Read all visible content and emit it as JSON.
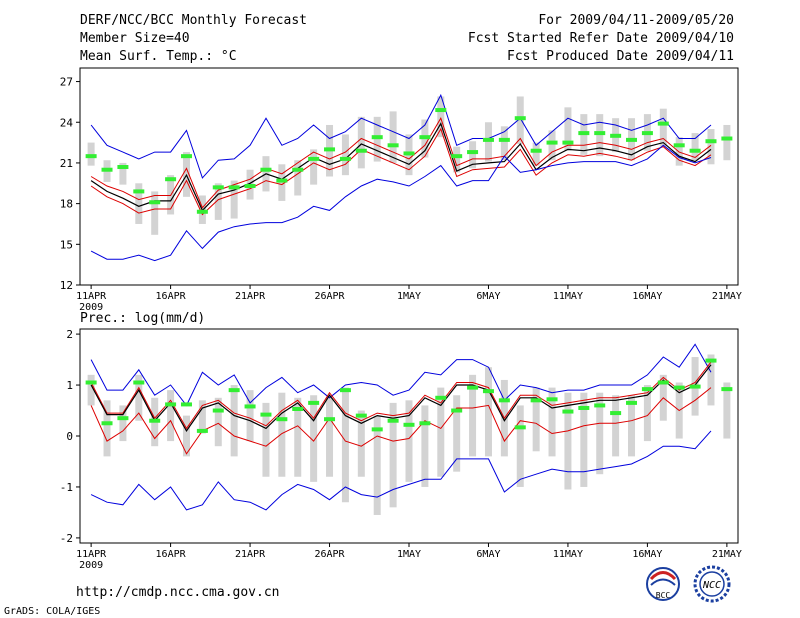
{
  "header": {
    "left": [
      "DERF/NCC/BCC Monthly Forecast",
      "Member Size=40",
      "Mean Surf. Temp.: °C"
    ],
    "right": [
      "For 2009/04/11-2009/05/20",
      "Fcst Started Refer Date 2009/04/10",
      "Fcst Produced Date 2009/04/11"
    ]
  },
  "prec_label": "Prec.: log(mm/d)",
  "footer": {
    "url": "http://cmdp.ncc.cma.gov.cn",
    "credit": "GrADS: COLA/IGES"
  },
  "logos": {
    "bcc": "BCC",
    "ncc": "NCC"
  },
  "colors": {
    "box": "#d3d3d3",
    "mean": "#33ee33",
    "ens": "#000000",
    "inner": "#dd0000",
    "outer": "#0000dd"
  },
  "x_ticks": [
    {
      "day": 0,
      "label": "11APR",
      "sub": "2009"
    },
    {
      "day": 5,
      "label": "16APR",
      "sub": ""
    },
    {
      "day": 10,
      "label": "21APR",
      "sub": ""
    },
    {
      "day": 15,
      "label": "26APR",
      "sub": ""
    },
    {
      "day": 20,
      "label": "1MAY",
      "sub": ""
    },
    {
      "day": 25,
      "label": "6MAY",
      "sub": ""
    },
    {
      "day": 30,
      "label": "11MAY",
      "sub": ""
    },
    {
      "day": 35,
      "label": "16MAY",
      "sub": ""
    },
    {
      "day": 40,
      "label": "21MAY",
      "sub": ""
    }
  ],
  "chart_data": [
    {
      "type": "line",
      "title": "Mean Surf. Temp.: °C",
      "x_unit": "day index (0 = 11APR 2009)",
      "x": [
        0,
        1,
        2,
        3,
        4,
        5,
        6,
        7,
        8,
        9,
        10,
        11,
        12,
        13,
        14,
        15,
        16,
        17,
        18,
        19,
        20,
        21,
        22,
        23,
        24,
        25,
        26,
        27,
        28,
        29,
        30,
        31,
        32,
        33,
        34,
        35,
        36,
        37,
        38,
        39
      ],
      "ylim": [
        12,
        28
      ],
      "yticks": [
        12,
        15,
        18,
        21,
        24,
        27
      ],
      "series": [
        {
          "name": "upper",
          "values": [
            23.8,
            22.3,
            21.8,
            21.3,
            21.8,
            21.8,
            23.4,
            19.9,
            21.2,
            21.3,
            22.3,
            24.3,
            22.3,
            22.8,
            23.8,
            22.8,
            23.3,
            24.3,
            23.8,
            23.3,
            22.8,
            23.8,
            26.0,
            22.3,
            22.8,
            22.8,
            23.3,
            24.3,
            22.3,
            23.3,
            24.3,
            23.8,
            24.0,
            23.8,
            23.4,
            23.8,
            24.3,
            22.8,
            22.8,
            23.8
          ]
        },
        {
          "name": "red_upper",
          "values": [
            20.0,
            19.3,
            18.9,
            18.3,
            18.6,
            18.6,
            20.6,
            17.7,
            19.0,
            19.4,
            19.8,
            20.6,
            20.2,
            21.0,
            21.8,
            21.3,
            21.8,
            22.8,
            22.3,
            21.8,
            21.3,
            22.3,
            24.3,
            20.8,
            21.3,
            21.3,
            21.5,
            22.8,
            20.8,
            21.8,
            22.3,
            22.3,
            22.5,
            22.3,
            22.0,
            22.5,
            22.8,
            21.8,
            21.4,
            22.3
          ]
        },
        {
          "name": "mean",
          "values": [
            19.7,
            18.9,
            18.4,
            17.8,
            18.2,
            18.2,
            20.1,
            17.5,
            18.7,
            19.0,
            19.5,
            20.2,
            19.8,
            20.6,
            21.4,
            20.9,
            21.3,
            22.4,
            21.9,
            21.4,
            20.9,
            21.9,
            23.9,
            20.4,
            20.9,
            21.0,
            21.1,
            22.4,
            20.5,
            21.4,
            22.0,
            21.9,
            22.1,
            21.9,
            21.6,
            22.2,
            22.5,
            21.5,
            21.1,
            22.0
          ]
        },
        {
          "name": "red_lower",
          "values": [
            19.3,
            18.5,
            18.0,
            17.3,
            17.6,
            17.6,
            19.7,
            17.2,
            18.3,
            18.7,
            19.1,
            19.7,
            19.4,
            20.2,
            21.0,
            20.5,
            20.9,
            22.0,
            21.5,
            21.0,
            20.5,
            21.5,
            23.5,
            20.0,
            20.5,
            20.6,
            20.7,
            22.0,
            20.1,
            21.0,
            21.6,
            21.5,
            21.7,
            21.5,
            21.2,
            21.8,
            22.2,
            21.2,
            20.8,
            21.6
          ]
        },
        {
          "name": "lower",
          "values": [
            14.5,
            13.9,
            13.9,
            14.2,
            13.8,
            14.2,
            16.0,
            14.7,
            15.9,
            16.3,
            16.5,
            16.6,
            16.6,
            17.0,
            17.8,
            17.5,
            18.5,
            19.3,
            19.8,
            19.6,
            19.3,
            20.0,
            20.8,
            19.3,
            19.7,
            19.7,
            21.5,
            20.3,
            20.5,
            20.8,
            21.0,
            21.1,
            21.1,
            21.1,
            20.8,
            21.3,
            22.3,
            21.4,
            21.0,
            21.4
          ]
        }
      ],
      "boxes": [
        {
          "x": 0,
          "lo": 20.8,
          "hi": 22.5,
          "mean": 21.5
        },
        {
          "x": 1,
          "lo": 19.6,
          "hi": 21.2,
          "mean": 20.5
        },
        {
          "x": 2,
          "lo": 19.4,
          "hi": 21.0,
          "mean": 20.7
        },
        {
          "x": 3,
          "lo": 16.5,
          "hi": 19.5,
          "mean": 18.9
        },
        {
          "x": 4,
          "lo": 15.7,
          "hi": 18.9,
          "mean": 18.1
        },
        {
          "x": 5,
          "lo": 17.2,
          "hi": 20.1,
          "mean": 19.8
        },
        {
          "x": 6,
          "lo": 18.5,
          "hi": 21.8,
          "mean": 21.5
        },
        {
          "x": 7,
          "lo": 16.5,
          "hi": 18.6,
          "mean": 17.4
        },
        {
          "x": 8,
          "lo": 16.8,
          "hi": 19.5,
          "mean": 19.2
        },
        {
          "x": 9,
          "lo": 16.9,
          "hi": 19.7,
          "mean": 19.2
        },
        {
          "x": 10,
          "lo": 18.3,
          "hi": 20.5,
          "mean": 19.3
        },
        {
          "x": 11,
          "lo": 18.9,
          "hi": 21.5,
          "mean": 20.5
        },
        {
          "x": 12,
          "lo": 18.2,
          "hi": 20.9,
          "mean": 19.7
        },
        {
          "x": 13,
          "lo": 18.6,
          "hi": 21.2,
          "mean": 20.5
        },
        {
          "x": 14,
          "lo": 19.4,
          "hi": 22.0,
          "mean": 21.3
        },
        {
          "x": 15,
          "lo": 20.0,
          "hi": 23.8,
          "mean": 22.0
        },
        {
          "x": 16,
          "lo": 20.1,
          "hi": 23.1,
          "mean": 21.3
        },
        {
          "x": 17,
          "lo": 20.6,
          "hi": 24.4,
          "mean": 21.9
        },
        {
          "x": 18,
          "lo": 21.1,
          "hi": 24.4,
          "mean": 22.9
        },
        {
          "x": 19,
          "lo": 21.0,
          "hi": 24.8,
          "mean": 22.3
        },
        {
          "x": 20,
          "lo": 20.1,
          "hi": 23.1,
          "mean": 21.7
        },
        {
          "x": 21,
          "lo": 21.4,
          "hi": 24.2,
          "mean": 22.9
        },
        {
          "x": 22,
          "lo": 22.9,
          "hi": 25.9,
          "mean": 24.9
        },
        {
          "x": 23,
          "lo": 20.3,
          "hi": 22.2,
          "mean": 21.5
        },
        {
          "x": 24,
          "lo": 20.6,
          "hi": 22.6,
          "mean": 21.8
        },
        {
          "x": 25,
          "lo": 21.1,
          "hi": 24.0,
          "mean": 22.7
        },
        {
          "x": 26,
          "lo": 21.2,
          "hi": 23.7,
          "mean": 22.7
        },
        {
          "x": 27,
          "lo": 22.4,
          "hi": 25.9,
          "mean": 24.3
        },
        {
          "x": 28,
          "lo": 20.8,
          "hi": 22.5,
          "mean": 21.9
        },
        {
          "x": 29,
          "lo": 21.2,
          "hi": 23.4,
          "mean": 22.5
        },
        {
          "x": 30,
          "lo": 21.9,
          "hi": 25.1,
          "mean": 22.5
        },
        {
          "x": 31,
          "lo": 21.6,
          "hi": 24.6,
          "mean": 23.2
        },
        {
          "x": 32,
          "lo": 21.5,
          "hi": 24.6,
          "mean": 23.2
        },
        {
          "x": 33,
          "lo": 21.8,
          "hi": 24.3,
          "mean": 23.0
        },
        {
          "x": 34,
          "lo": 21.2,
          "hi": 24.3,
          "mean": 22.7
        },
        {
          "x": 35,
          "lo": 21.9,
          "hi": 24.6,
          "mean": 23.2
        },
        {
          "x": 36,
          "lo": 22.2,
          "hi": 25.0,
          "mean": 23.9
        },
        {
          "x": 37,
          "lo": 20.8,
          "hi": 22.9,
          "mean": 22.3
        },
        {
          "x": 38,
          "lo": 21.2,
          "hi": 23.2,
          "mean": 21.9
        },
        {
          "x": 39,
          "lo": 20.9,
          "hi": 23.5,
          "mean": 22.6
        },
        {
          "x": 40,
          "lo": 21.2,
          "hi": 23.8,
          "mean": 22.8
        }
      ]
    },
    {
      "type": "line",
      "title": "Prec.: log(mm/d)",
      "x_unit": "day index (0 = 11APR 2009)",
      "x": [
        0,
        1,
        2,
        3,
        4,
        5,
        6,
        7,
        8,
        9,
        10,
        11,
        12,
        13,
        14,
        15,
        16,
        17,
        18,
        19,
        20,
        21,
        22,
        23,
        24,
        25,
        26,
        27,
        28,
        29,
        30,
        31,
        32,
        33,
        34,
        35,
        36,
        37,
        38,
        39
      ],
      "ylim": [
        -2.1,
        2.1
      ],
      "yticks": [
        -2,
        -1,
        0,
        1,
        2
      ],
      "series": [
        {
          "name": "upper",
          "values": [
            1.5,
            0.9,
            0.9,
            1.3,
            0.8,
            1.0,
            0.6,
            1.25,
            1.0,
            1.2,
            0.65,
            0.95,
            1.15,
            0.85,
            1.0,
            0.75,
            1.0,
            1.05,
            1.0,
            0.8,
            0.9,
            1.25,
            1.2,
            1.5,
            1.5,
            1.35,
            0.7,
            1.0,
            0.95,
            0.85,
            0.9,
            0.9,
            1.0,
            1.0,
            1.0,
            1.2,
            1.55,
            1.35,
            1.8,
            1.25
          ]
        },
        {
          "name": "red_upper",
          "values": [
            1.05,
            0.45,
            0.45,
            0.95,
            0.35,
            0.7,
            0.15,
            0.6,
            0.7,
            0.45,
            0.35,
            0.2,
            0.5,
            0.7,
            0.35,
            0.85,
            0.45,
            0.3,
            0.45,
            0.4,
            0.45,
            0.8,
            0.65,
            1.05,
            1.05,
            0.95,
            0.35,
            0.8,
            0.8,
            0.6,
            0.65,
            0.7,
            0.75,
            0.75,
            0.8,
            0.85,
            1.15,
            0.9,
            1.05,
            1.45
          ]
        },
        {
          "name": "mean",
          "values": [
            1.0,
            0.42,
            0.42,
            0.9,
            0.3,
            0.65,
            0.1,
            0.55,
            0.65,
            0.4,
            0.3,
            0.15,
            0.45,
            0.65,
            0.3,
            0.8,
            0.4,
            0.25,
            0.4,
            0.35,
            0.4,
            0.75,
            0.6,
            1.0,
            1.0,
            0.9,
            0.3,
            0.75,
            0.75,
            0.55,
            0.6,
            0.65,
            0.7,
            0.7,
            0.75,
            0.8,
            1.1,
            0.85,
            1.0,
            1.4
          ]
        },
        {
          "name": "red_lower",
          "values": [
            0.6,
            -0.1,
            0.1,
            0.45,
            -0.05,
            0.3,
            -0.35,
            0.1,
            0.25,
            0.0,
            -0.1,
            -0.2,
            0.05,
            0.2,
            -0.1,
            0.35,
            -0.1,
            -0.2,
            0.0,
            -0.1,
            -0.05,
            0.3,
            0.15,
            0.55,
            0.55,
            0.6,
            -0.1,
            0.3,
            0.25,
            0.05,
            0.1,
            0.2,
            0.25,
            0.25,
            0.3,
            0.4,
            0.75,
            0.5,
            0.7,
            0.95
          ]
        },
        {
          "name": "lower",
          "values": [
            -1.15,
            -1.3,
            -1.35,
            -0.95,
            -1.25,
            -1.0,
            -1.45,
            -1.35,
            -0.9,
            -1.25,
            -1.3,
            -1.45,
            -1.15,
            -0.95,
            -1.05,
            -1.25,
            -1.0,
            -1.15,
            -1.2,
            -1.05,
            -0.95,
            -0.85,
            -0.85,
            -0.45,
            -0.45,
            -0.45,
            -1.1,
            -0.85,
            -0.75,
            -0.65,
            -0.7,
            -0.7,
            -0.65,
            -0.6,
            -0.55,
            -0.4,
            -0.2,
            -0.2,
            -0.25,
            0.1
          ]
        }
      ],
      "boxes": [
        {
          "x": 0,
          "lo": 0.6,
          "hi": 1.2,
          "mean": 1.05
        },
        {
          "x": 1,
          "lo": -0.4,
          "hi": 0.7,
          "mean": 0.25
        },
        {
          "x": 2,
          "lo": -0.1,
          "hi": 0.6,
          "mean": 0.35
        },
        {
          "x": 3,
          "lo": 0.3,
          "hi": 1.2,
          "mean": 1.05
        },
        {
          "x": 4,
          "lo": -0.2,
          "hi": 0.75,
          "mean": 0.3
        },
        {
          "x": 5,
          "lo": -0.1,
          "hi": 0.9,
          "mean": 0.62
        },
        {
          "x": 6,
          "lo": -0.4,
          "hi": 0.4,
          "mean": 0.62
        },
        {
          "x": 7,
          "lo": 0.05,
          "hi": 0.7,
          "mean": 0.1
        },
        {
          "x": 8,
          "lo": -0.2,
          "hi": 0.75,
          "mean": 0.5
        },
        {
          "x": 9,
          "lo": -0.4,
          "hi": 1.0,
          "mean": 0.9
        },
        {
          "x": 10,
          "lo": -0.1,
          "hi": 0.9,
          "mean": 0.58
        },
        {
          "x": 11,
          "lo": -0.8,
          "hi": 0.65,
          "mean": 0.42
        },
        {
          "x": 12,
          "lo": -0.8,
          "hi": 0.85,
          "mean": 0.33
        },
        {
          "x": 13,
          "lo": -0.8,
          "hi": 0.75,
          "mean": 0.53
        },
        {
          "x": 14,
          "lo": -0.9,
          "hi": 0.8,
          "mean": 0.65
        },
        {
          "x": 15,
          "lo": -0.8,
          "hi": 0.75,
          "mean": 0.33
        },
        {
          "x": 16,
          "lo": -1.3,
          "hi": 0.95,
          "mean": 0.9
        },
        {
          "x": 17,
          "lo": -0.8,
          "hi": 0.5,
          "mean": 0.4
        },
        {
          "x": 18,
          "lo": -1.55,
          "hi": 0.4,
          "mean": 0.13
        },
        {
          "x": 19,
          "lo": -1.4,
          "hi": 0.65,
          "mean": 0.3
        },
        {
          "x": 20,
          "lo": -0.9,
          "hi": 0.7,
          "mean": 0.22
        },
        {
          "x": 21,
          "lo": -1.0,
          "hi": 0.6,
          "mean": 0.25
        },
        {
          "x": 22,
          "lo": -0.8,
          "hi": 0.95,
          "mean": 0.75
        },
        {
          "x": 23,
          "lo": -0.7,
          "hi": 0.8,
          "mean": 0.5
        },
        {
          "x": 24,
          "lo": -0.4,
          "hi": 1.2,
          "mean": 0.95
        },
        {
          "x": 25,
          "lo": -0.4,
          "hi": 1.35,
          "mean": 0.88
        },
        {
          "x": 26,
          "lo": -0.4,
          "hi": 1.1,
          "mean": 0.7
        },
        {
          "x": 27,
          "lo": -1.0,
          "hi": 0.6,
          "mean": 0.17
        },
        {
          "x": 28,
          "lo": -0.3,
          "hi": 0.95,
          "mean": 0.7
        },
        {
          "x": 29,
          "lo": -0.4,
          "hi": 0.95,
          "mean": 0.72
        },
        {
          "x": 30,
          "lo": -1.05,
          "hi": 0.85,
          "mean": 0.48
        },
        {
          "x": 31,
          "lo": -1.0,
          "hi": 0.85,
          "mean": 0.55
        },
        {
          "x": 32,
          "lo": -0.75,
          "hi": 0.85,
          "mean": 0.6
        },
        {
          "x": 33,
          "lo": -0.4,
          "hi": 0.8,
          "mean": 0.45
        },
        {
          "x": 34,
          "lo": -0.4,
          "hi": 0.8,
          "mean": 0.65
        },
        {
          "x": 35,
          "lo": -0.1,
          "hi": 1.0,
          "mean": 0.92
        },
        {
          "x": 36,
          "lo": 0.3,
          "hi": 1.2,
          "mean": 1.05
        },
        {
          "x": 37,
          "lo": -0.05,
          "hi": 1.05,
          "mean": 0.95
        },
        {
          "x": 38,
          "lo": 0.4,
          "hi": 1.55,
          "mean": 0.97
        },
        {
          "x": 39,
          "lo": 0.6,
          "hi": 1.6,
          "mean": 1.48
        },
        {
          "x": 40,
          "lo": -0.05,
          "hi": 1.05,
          "mean": 0.92
        }
      ]
    }
  ]
}
